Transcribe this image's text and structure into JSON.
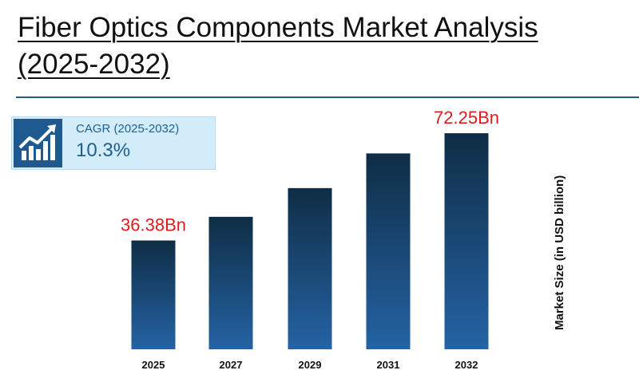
{
  "title": "Fiber Optics Components Market Analysis (2025-2032)",
  "cagr": {
    "label": "CAGR (2025-2032)",
    "value": "10.3%",
    "icon": "rising-chart-icon"
  },
  "colors": {
    "bar_top": "#0f2d45",
    "bar_bottom": "#2563a4",
    "accent": "#1f5f8b",
    "label_red": "#e01b1b"
  },
  "chart_data": {
    "type": "bar",
    "categories": [
      "2025",
      "2027",
      "2029",
      "2031",
      "2032"
    ],
    "values": [
      36.38,
      44.3,
      53.9,
      65.5,
      72.25
    ],
    "data_labels": [
      "36.38Bn",
      "",
      "",
      "",
      "72.25Bn"
    ],
    "ylabel": "Market Size (in USD billion)",
    "xlabel": "",
    "ylim": [
      0,
      80
    ],
    "grid": false,
    "legend": "none"
  }
}
